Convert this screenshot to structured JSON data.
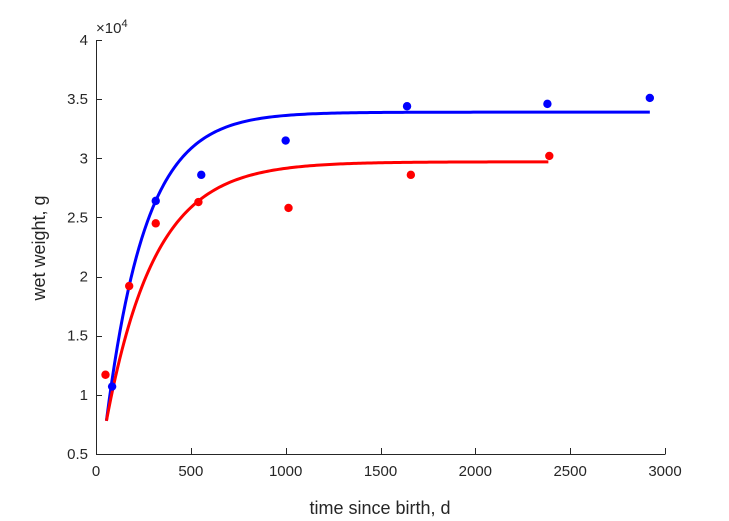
{
  "chart_data": {
    "type": "scatter",
    "xlabel": "time since birth, d",
    "ylabel": "wet weight, g",
    "xlim": [
      0,
      3000
    ],
    "ylim": [
      0.5,
      4
    ],
    "y_multiplier_label": "×10",
    "y_multiplier_exponent": "4",
    "x_ticks": [
      {
        "value": 0,
        "label": "0"
      },
      {
        "value": 500,
        "label": "500"
      },
      {
        "value": 1000,
        "label": "1000"
      },
      {
        "value": 1500,
        "label": "1500"
      },
      {
        "value": 2000,
        "label": "2000"
      },
      {
        "value": 2500,
        "label": "2500"
      },
      {
        "value": 3000,
        "label": "3000"
      }
    ],
    "y_ticks": [
      {
        "value": 0.5,
        "label": "0.5"
      },
      {
        "value": 1,
        "label": "1"
      },
      {
        "value": 1.5,
        "label": "1.5"
      },
      {
        "value": 2,
        "label": "2"
      },
      {
        "value": 2.5,
        "label": "2.5"
      },
      {
        "value": 3,
        "label": "3"
      },
      {
        "value": 3.5,
        "label": "3.5"
      },
      {
        "value": 4,
        "label": "4"
      }
    ],
    "grid": false,
    "series": [
      {
        "color": "#0000ff",
        "points": [
          {
            "x": 85,
            "y": 1.07
          },
          {
            "x": 315,
            "y": 2.64
          },
          {
            "x": 555,
            "y": 2.86
          },
          {
            "x": 1000,
            "y": 3.15
          },
          {
            "x": 1640,
            "y": 3.44
          },
          {
            "x": 2380,
            "y": 3.46
          },
          {
            "x": 2920,
            "y": 3.51
          }
        ],
        "curve": {
          "x_start": 55,
          "x_end": 2920,
          "y_inf": 3.39,
          "y0": 0.78,
          "rate": 0.0048
        }
      },
      {
        "color": "#ff0000",
        "points": [
          {
            "x": 50,
            "y": 1.17
          },
          {
            "x": 175,
            "y": 1.92
          },
          {
            "x": 315,
            "y": 2.45
          },
          {
            "x": 540,
            "y": 2.63
          },
          {
            "x": 1015,
            "y": 2.58
          },
          {
            "x": 1660,
            "y": 2.86
          },
          {
            "x": 2390,
            "y": 3.02
          }
        ],
        "curve": {
          "x_start": 55,
          "x_end": 2385,
          "y_inf": 2.97,
          "y0": 0.78,
          "rate": 0.0039
        }
      }
    ]
  }
}
